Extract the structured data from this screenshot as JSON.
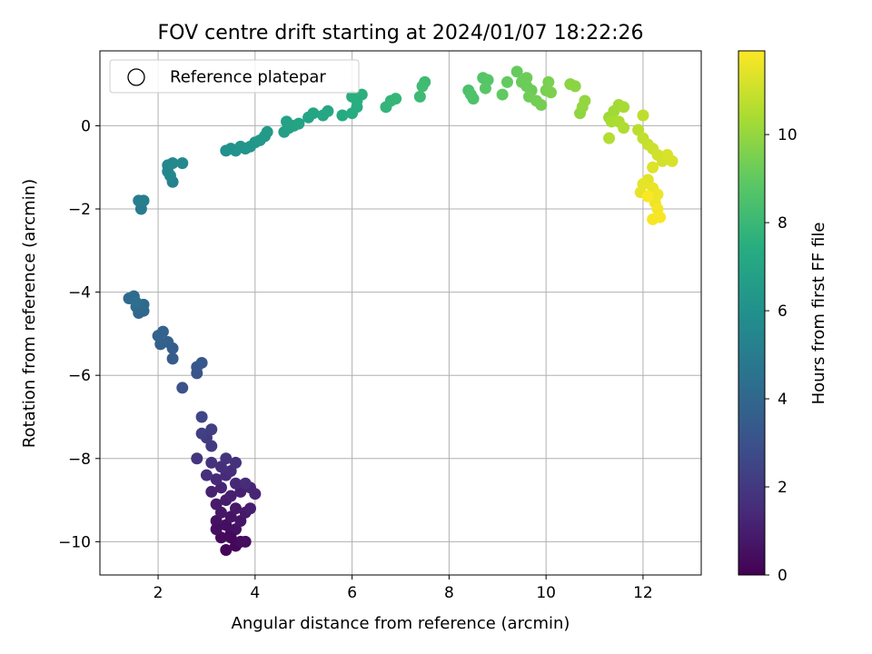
{
  "chart_data": {
    "type": "scatter",
    "title": "FOV centre drift starting at 2024/01/07 18:22:26",
    "xlabel": "Angular distance from reference (arcmin)",
    "ylabel": "Rotation from reference (arcmin)",
    "xlim": [
      0.8,
      13.2
    ],
    "ylim": [
      -10.8,
      1.8
    ],
    "xticks": [
      2,
      4,
      6,
      8,
      10,
      12
    ],
    "yticks": [
      0,
      -2,
      -4,
      -6,
      -8,
      -10
    ],
    "xtick_labels": [
      "2",
      "4",
      "6",
      "8",
      "10",
      "12"
    ],
    "ytick_labels": [
      "0",
      "−2",
      "−4",
      "−6",
      "−8",
      "−10"
    ],
    "grid": true,
    "legend": {
      "position": "top-left",
      "entries": [
        "Reference platepar"
      ]
    },
    "colorbar": {
      "label": "Hours from first FF file",
      "colormap": "viridis",
      "range": [
        0,
        11.9
      ],
      "ticks": [
        0,
        2,
        4,
        6,
        8,
        10
      ],
      "tick_labels": [
        "0",
        "2",
        "4",
        "6",
        "8",
        "10"
      ]
    },
    "points": [
      {
        "x": 3.4,
        "y": -10.2,
        "c": 0.1
      },
      {
        "x": 3.6,
        "y": -10.1,
        "c": 0.2
      },
      {
        "x": 3.3,
        "y": -9.9,
        "c": 0.3
      },
      {
        "x": 3.5,
        "y": -9.8,
        "c": 0.35
      },
      {
        "x": 3.7,
        "y": -10.0,
        "c": 0.4
      },
      {
        "x": 3.8,
        "y": -10.0,
        "c": 0.45
      },
      {
        "x": 3.4,
        "y": -9.6,
        "c": 0.5
      },
      {
        "x": 3.6,
        "y": -9.7,
        "c": 0.55
      },
      {
        "x": 3.2,
        "y": -9.5,
        "c": 0.6
      },
      {
        "x": 3.5,
        "y": -9.4,
        "c": 0.65
      },
      {
        "x": 3.7,
        "y": -9.5,
        "c": 0.7
      },
      {
        "x": 3.3,
        "y": -9.3,
        "c": 0.75
      },
      {
        "x": 3.6,
        "y": -9.2,
        "c": 0.8
      },
      {
        "x": 3.8,
        "y": -9.3,
        "c": 0.85
      },
      {
        "x": 3.2,
        "y": -9.1,
        "c": 0.9
      },
      {
        "x": 3.4,
        "y": -9.0,
        "c": 0.95
      },
      {
        "x": 3.9,
        "y": -9.2,
        "c": 1.0
      },
      {
        "x": 3.5,
        "y": -8.9,
        "c": 1.05
      },
      {
        "x": 3.7,
        "y": -8.8,
        "c": 1.1
      },
      {
        "x": 3.1,
        "y": -8.8,
        "c": 1.15
      },
      {
        "x": 3.3,
        "y": -8.7,
        "c": 1.2
      },
      {
        "x": 3.9,
        "y": -8.7,
        "c": 1.25
      },
      {
        "x": 4.0,
        "y": -8.85,
        "c": 1.3
      },
      {
        "x": 3.6,
        "y": -8.6,
        "c": 1.35
      },
      {
        "x": 3.2,
        "y": -8.5,
        "c": 1.4
      },
      {
        "x": 3.4,
        "y": -8.4,
        "c": 1.45
      },
      {
        "x": 3.8,
        "y": -8.6,
        "c": 1.5
      },
      {
        "x": 3.5,
        "y": -8.3,
        "c": 1.55
      },
      {
        "x": 3.0,
        "y": -8.4,
        "c": 1.6
      },
      {
        "x": 3.3,
        "y": -8.2,
        "c": 1.65
      },
      {
        "x": 3.6,
        "y": -8.1,
        "c": 1.7
      },
      {
        "x": 3.1,
        "y": -8.1,
        "c": 1.75
      },
      {
        "x": 3.4,
        "y": -8.0,
        "c": 1.8
      },
      {
        "x": 2.8,
        "y": -8.0,
        "c": 1.85
      },
      {
        "x": 3.2,
        "y": -9.7,
        "c": 0.5
      },
      {
        "x": 3.5,
        "y": -9.9,
        "c": 0.25
      },
      {
        "x": 3.1,
        "y": -7.7,
        "c": 2.0
      },
      {
        "x": 3.0,
        "y": -7.5,
        "c": 2.1
      },
      {
        "x": 3.1,
        "y": -7.3,
        "c": 2.2
      },
      {
        "x": 2.9,
        "y": -7.4,
        "c": 2.3
      },
      {
        "x": 2.9,
        "y": -7.0,
        "c": 2.5
      },
      {
        "x": 2.5,
        "y": -6.3,
        "c": 3.0
      },
      {
        "x": 2.8,
        "y": -5.95,
        "c": 3.1
      },
      {
        "x": 2.8,
        "y": -5.8,
        "c": 3.2
      },
      {
        "x": 2.9,
        "y": -5.7,
        "c": 3.3
      },
      {
        "x": 2.3,
        "y": -5.6,
        "c": 3.5
      },
      {
        "x": 2.3,
        "y": -5.35,
        "c": 3.6
      },
      {
        "x": 2.2,
        "y": -5.2,
        "c": 3.65
      },
      {
        "x": 2.05,
        "y": -5.25,
        "c": 3.7
      },
      {
        "x": 2.0,
        "y": -5.05,
        "c": 3.75
      },
      {
        "x": 2.1,
        "y": -4.95,
        "c": 3.8
      },
      {
        "x": 1.6,
        "y": -4.5,
        "c": 4.0
      },
      {
        "x": 1.7,
        "y": -4.45,
        "c": 4.05
      },
      {
        "x": 1.55,
        "y": -4.35,
        "c": 4.1
      },
      {
        "x": 1.7,
        "y": -4.3,
        "c": 4.15
      },
      {
        "x": 1.4,
        "y": -4.15,
        "c": 4.2
      },
      {
        "x": 1.5,
        "y": -4.1,
        "c": 4.25
      },
      {
        "x": 1.55,
        "y": -4.25,
        "c": 4.3
      },
      {
        "x": 1.65,
        "y": -2.0,
        "c": 5.0
      },
      {
        "x": 1.6,
        "y": -1.8,
        "c": 5.1
      },
      {
        "x": 1.7,
        "y": -1.8,
        "c": 5.15
      },
      {
        "x": 2.3,
        "y": -1.35,
        "c": 5.3
      },
      {
        "x": 2.2,
        "y": -1.1,
        "c": 5.4
      },
      {
        "x": 2.25,
        "y": -1.2,
        "c": 5.45
      },
      {
        "x": 2.2,
        "y": -0.95,
        "c": 5.5
      },
      {
        "x": 2.3,
        "y": -0.9,
        "c": 5.55
      },
      {
        "x": 2.5,
        "y": -0.9,
        "c": 5.6
      },
      {
        "x": 3.4,
        "y": -0.6,
        "c": 6.0
      },
      {
        "x": 3.5,
        "y": -0.55,
        "c": 6.05
      },
      {
        "x": 3.6,
        "y": -0.6,
        "c": 6.1
      },
      {
        "x": 3.8,
        "y": -0.55,
        "c": 6.15
      },
      {
        "x": 3.7,
        "y": -0.5,
        "c": 6.2
      },
      {
        "x": 4.0,
        "y": -0.4,
        "c": 6.3
      },
      {
        "x": 4.1,
        "y": -0.35,
        "c": 6.35
      },
      {
        "x": 4.2,
        "y": -0.25,
        "c": 6.4
      },
      {
        "x": 4.25,
        "y": -0.15,
        "c": 6.45
      },
      {
        "x": 3.9,
        "y": -0.5,
        "c": 6.25
      },
      {
        "x": 4.6,
        "y": -0.15,
        "c": 6.7
      },
      {
        "x": 4.7,
        "y": -0.05,
        "c": 6.75
      },
      {
        "x": 4.65,
        "y": 0.1,
        "c": 6.8
      },
      {
        "x": 4.8,
        "y": 0.0,
        "c": 6.85
      },
      {
        "x": 4.9,
        "y": 0.05,
        "c": 6.9
      },
      {
        "x": 5.1,
        "y": 0.2,
        "c": 7.0
      },
      {
        "x": 5.2,
        "y": 0.3,
        "c": 7.05
      },
      {
        "x": 5.4,
        "y": 0.25,
        "c": 7.1
      },
      {
        "x": 5.5,
        "y": 0.35,
        "c": 7.15
      },
      {
        "x": 5.8,
        "y": 0.25,
        "c": 7.3
      },
      {
        "x": 6.0,
        "y": 0.3,
        "c": 7.4
      },
      {
        "x": 6.1,
        "y": 0.45,
        "c": 7.45
      },
      {
        "x": 6.0,
        "y": 0.7,
        "c": 7.5
      },
      {
        "x": 6.2,
        "y": 0.75,
        "c": 7.55
      },
      {
        "x": 6.1,
        "y": 0.6,
        "c": 7.5
      },
      {
        "x": 6.7,
        "y": 0.45,
        "c": 7.8
      },
      {
        "x": 6.8,
        "y": 0.6,
        "c": 7.85
      },
      {
        "x": 6.9,
        "y": 0.65,
        "c": 7.9
      },
      {
        "x": 7.4,
        "y": 0.7,
        "c": 8.1
      },
      {
        "x": 7.5,
        "y": 1.05,
        "c": 8.15
      },
      {
        "x": 7.45,
        "y": 0.95,
        "c": 8.2
      },
      {
        "x": 8.4,
        "y": 0.85,
        "c": 8.5
      },
      {
        "x": 8.5,
        "y": 0.65,
        "c": 8.55
      },
      {
        "x": 8.45,
        "y": 0.75,
        "c": 8.6
      },
      {
        "x": 8.7,
        "y": 1.15,
        "c": 8.7
      },
      {
        "x": 8.8,
        "y": 1.1,
        "c": 8.75
      },
      {
        "x": 8.75,
        "y": 0.9,
        "c": 8.8
      },
      {
        "x": 9.1,
        "y": 0.75,
        "c": 9.0
      },
      {
        "x": 9.2,
        "y": 1.05,
        "c": 9.05
      },
      {
        "x": 9.4,
        "y": 1.3,
        "c": 9.1
      },
      {
        "x": 9.5,
        "y": 1.05,
        "c": 9.15
      },
      {
        "x": 9.6,
        "y": 0.95,
        "c": 9.2
      },
      {
        "x": 9.7,
        "y": 0.85,
        "c": 9.25
      },
      {
        "x": 9.65,
        "y": 0.7,
        "c": 9.3
      },
      {
        "x": 9.8,
        "y": 0.6,
        "c": 9.35
      },
      {
        "x": 9.9,
        "y": 0.5,
        "c": 9.4
      },
      {
        "x": 10.0,
        "y": 0.85,
        "c": 9.45
      },
      {
        "x": 10.05,
        "y": 1.05,
        "c": 9.5
      },
      {
        "x": 10.1,
        "y": 0.8,
        "c": 9.55
      },
      {
        "x": 9.6,
        "y": 1.15,
        "c": 9.25
      },
      {
        "x": 10.5,
        "y": 1.0,
        "c": 9.8
      },
      {
        "x": 10.6,
        "y": 0.95,
        "c": 9.85
      },
      {
        "x": 10.7,
        "y": 0.3,
        "c": 9.9
      },
      {
        "x": 10.75,
        "y": 0.45,
        "c": 9.95
      },
      {
        "x": 10.8,
        "y": 0.6,
        "c": 10.0
      },
      {
        "x": 11.3,
        "y": 0.2,
        "c": 10.2
      },
      {
        "x": 11.4,
        "y": 0.35,
        "c": 10.25
      },
      {
        "x": 11.5,
        "y": 0.5,
        "c": 10.3
      },
      {
        "x": 11.6,
        "y": 0.45,
        "c": 10.35
      },
      {
        "x": 11.35,
        "y": 0.1,
        "c": 10.4
      },
      {
        "x": 11.5,
        "y": 0.1,
        "c": 10.45
      },
      {
        "x": 11.6,
        "y": -0.05,
        "c": 10.5
      },
      {
        "x": 11.3,
        "y": -0.3,
        "c": 10.55
      },
      {
        "x": 11.9,
        "y": -0.1,
        "c": 10.7
      },
      {
        "x": 12.0,
        "y": -0.3,
        "c": 10.8
      },
      {
        "x": 12.1,
        "y": -0.45,
        "c": 10.9
      },
      {
        "x": 12.2,
        "y": -0.55,
        "c": 11.0
      },
      {
        "x": 12.0,
        "y": 0.25,
        "c": 10.75
      },
      {
        "x": 12.3,
        "y": -0.7,
        "c": 11.1
      },
      {
        "x": 12.4,
        "y": -0.85,
        "c": 11.15
      },
      {
        "x": 12.6,
        "y": -0.85,
        "c": 11.2
      },
      {
        "x": 12.5,
        "y": -0.7,
        "c": 11.25
      },
      {
        "x": 12.2,
        "y": -1.0,
        "c": 11.3
      },
      {
        "x": 12.1,
        "y": -1.3,
        "c": 11.4
      },
      {
        "x": 12.0,
        "y": -1.4,
        "c": 11.45
      },
      {
        "x": 11.95,
        "y": -1.6,
        "c": 11.5
      },
      {
        "x": 12.2,
        "y": -1.5,
        "c": 11.55
      },
      {
        "x": 12.3,
        "y": -1.65,
        "c": 11.6
      },
      {
        "x": 12.25,
        "y": -1.85,
        "c": 11.65
      },
      {
        "x": 12.3,
        "y": -2.0,
        "c": 11.7
      },
      {
        "x": 12.2,
        "y": -2.25,
        "c": 11.75
      },
      {
        "x": 12.35,
        "y": -2.2,
        "c": 11.8
      },
      {
        "x": 12.1,
        "y": -1.7,
        "c": 11.85
      }
    ]
  }
}
